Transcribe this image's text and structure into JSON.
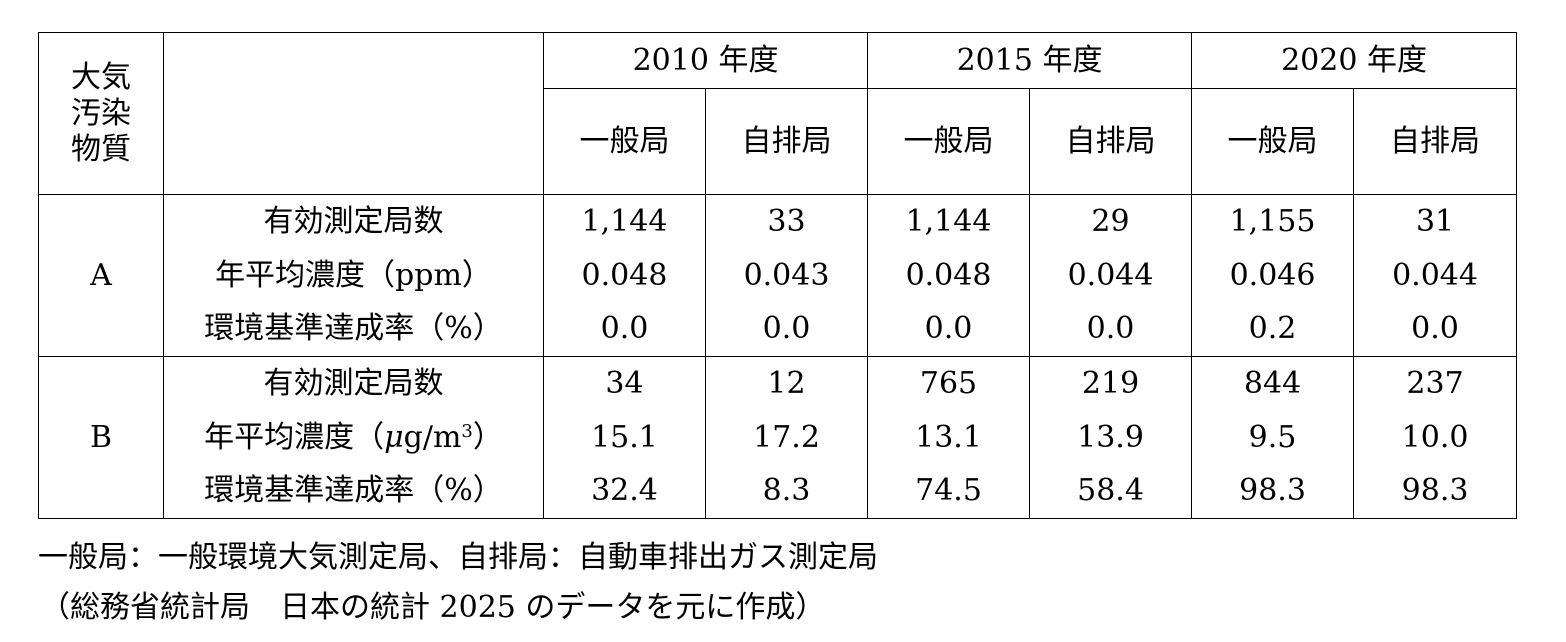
{
  "table": {
    "corner_header": [
      "大気",
      "汚染",
      "物質"
    ],
    "years": [
      "2010 年度",
      "2015 年度",
      "2020 年度"
    ],
    "station_types": [
      "一般局",
      "自排局",
      "一般局",
      "自排局",
      "一般局",
      "自排局"
    ],
    "groups": [
      {
        "pollutant": "A",
        "rows": [
          {
            "metric": "有効測定局数",
            "values": [
              "1,144",
              "33",
              "1,144",
              "29",
              "1,155",
              "31"
            ]
          },
          {
            "metric": "年平均濃度（ppm）",
            "values": [
              "0.048",
              "0.043",
              "0.048",
              "0.044",
              "0.046",
              "0.044"
            ]
          },
          {
            "metric": "環境基準達成率（%）",
            "values": [
              "0.0",
              "0.0",
              "0.0",
              "0.0",
              "0.2",
              "0.0"
            ]
          }
        ]
      },
      {
        "pollutant": "B",
        "rows": [
          {
            "metric": "有効測定局数",
            "values": [
              "34",
              "12",
              "765",
              "219",
              "844",
              "237"
            ]
          },
          {
            "metric_prefix": "年平均濃度（",
            "metric_mu": "μ",
            "metric_unit": "g/m",
            "metric_sup": "3",
            "metric_suffix": "）",
            "values": [
              "15.1",
              "17.2",
              "13.1",
              "13.9",
              "9.5",
              "10.0"
            ]
          },
          {
            "metric": "環境基準達成率（%）",
            "values": [
              "32.4",
              "8.3",
              "74.5",
              "58.4",
              "98.3",
              "98.3"
            ]
          }
        ]
      }
    ]
  },
  "notes": {
    "legend": "一般局：一般環境大気測定局、自排局：自動車排出ガス測定局",
    "source": "（総務省統計局　日本の統計 2025 のデータを元に作成）"
  }
}
